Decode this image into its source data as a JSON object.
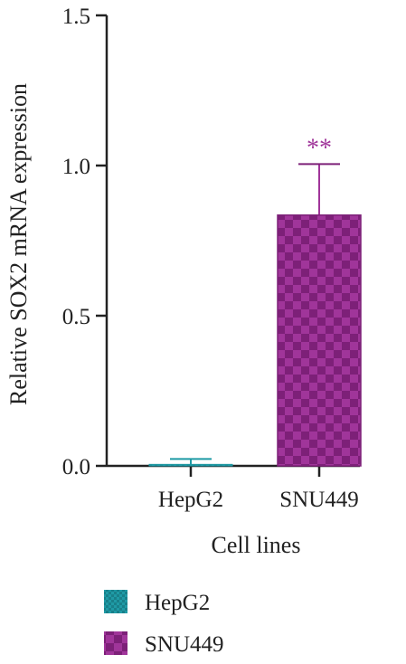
{
  "chart_data": {
    "type": "bar",
    "categories": [
      "HepG2",
      "SNU449"
    ],
    "values": [
      0.005,
      0.835
    ],
    "error": [
      0.018,
      0.17
    ],
    "significance": [
      "",
      "**"
    ],
    "xlabel": "Cell lines",
    "ylabel": "Relative SOX2 mRNA expression",
    "ylim": [
      0,
      1.5
    ],
    "yticks": [
      "0.0",
      "0.5",
      "1.0",
      "1.5"
    ],
    "ytick_values": [
      0,
      0.5,
      1.0,
      1.5
    ],
    "legend": {
      "placement": "bottom-left",
      "entries": [
        {
          "label": "HepG2",
          "color": "#1f9aa5"
        },
        {
          "label": "SNU449",
          "color": "#a0359a"
        }
      ]
    },
    "colors": {
      "axis": "#222222",
      "HepG2": "#1f9aa5",
      "SNU449": "#a0359a",
      "SNU449_dark": "#7d2078",
      "significance": "#a0359a"
    },
    "grid": false
  }
}
